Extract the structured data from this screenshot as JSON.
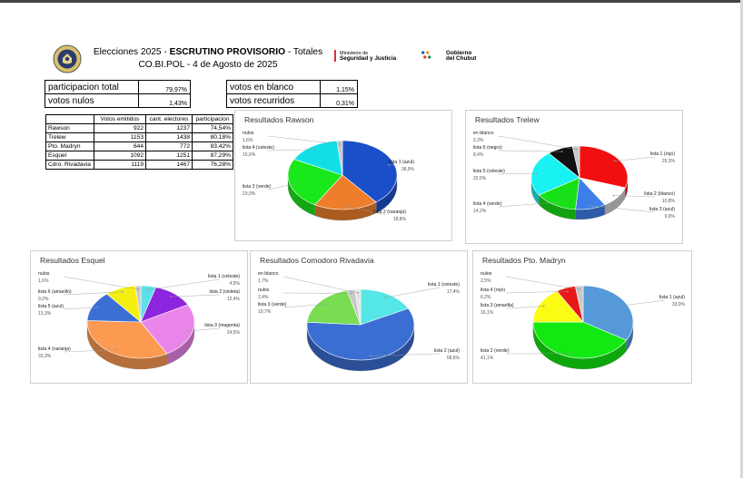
{
  "header": {
    "title_prefix": "Elecciones 2025 - ",
    "title_bold": "ESCRUTINO PROVISORIO",
    "title_suffix": " - Totales",
    "subtitle": "CO.BI.POL - 4 de Agosto de 2025"
  },
  "logos": {
    "ministry_line1": "Ministerio de",
    "ministry_line2": "Seguridad y Justicia",
    "gov_line1": "Gobierno",
    "gov_line2": "del Chubut"
  },
  "summary": {
    "participation_label": "participacion total",
    "participation_value": "79,97%",
    "null_label": "votos nulos",
    "null_value": "1,43%",
    "blank_label": "votos en blanco",
    "blank_value": "1,15%",
    "appealed_label": "votos recurridos",
    "appealed_value": "0,31%"
  },
  "table": {
    "headers": [
      "",
      "Votos emitidos",
      "cant. electores",
      "participacion"
    ],
    "rows": [
      [
        "Rawson",
        "922",
        "1237",
        "74,54%"
      ],
      [
        "Trelew",
        "1153",
        "1438",
        "80,18%"
      ],
      [
        "Pto. Madryn",
        "644",
        "772",
        "83,42%"
      ],
      [
        "Esquel",
        "1092",
        "1251",
        "87,29%"
      ],
      [
        "Cdro. Rivadavia",
        "1119",
        "1467",
        "76,28%"
      ]
    ]
  },
  "chart_data": [
    {
      "type": "pie",
      "title": "Resultados Rawson",
      "slices": [
        {
          "label": "lista 1 (azul)",
          "value": 38.9,
          "display": "38,9%",
          "color": "#1a4fc9"
        },
        {
          "label": "lista 2 (naranja)",
          "value": 18.8,
          "display": "18,8%",
          "color": "#ee7e2c"
        },
        {
          "label": "lista 3 (verde)",
          "value": 23.9,
          "display": "23,9%",
          "color": "#19e81b"
        },
        {
          "label": "lista 4 (celeste)",
          "value": 15.6,
          "display": "15,6%",
          "color": "#10dfe8"
        },
        {
          "label": "nulos",
          "value": 1.6,
          "display": "1,6%",
          "color": "#c8c8c8"
        }
      ]
    },
    {
      "type": "pie",
      "title": "Resultados Trelew",
      "slices": [
        {
          "label": "lista 1 (rojo)",
          "value": 29.3,
          "display": "29,3%",
          "color": "#f20f0f"
        },
        {
          "label": "lista 2 (blanco)",
          "value": 10.8,
          "display": "10,8%",
          "color": "#ffffff"
        },
        {
          "label": "lista 3 (azul)",
          "value": 9.9,
          "display": "9,9%",
          "color": "#3e7ee8"
        },
        {
          "label": "lista 4 (verde)",
          "value": 14.2,
          "display": "14,2%",
          "color": "#18e018"
        },
        {
          "label": "lista 5 (celeste)",
          "value": 22.5,
          "display": "22,5%",
          "color": "#18f2f2"
        },
        {
          "label": "lista 6 (negro)",
          "value": 8.4,
          "display": "8,4%",
          "color": "#111111"
        },
        {
          "label": "en blanco",
          "value": 2.3,
          "display": "2,3%",
          "color": "#c8c8c8"
        }
      ]
    },
    {
      "type": "pie",
      "title": "Resultados Esquel",
      "slices": [
        {
          "label": "lista 1 (celeste)",
          "value": 4.5,
          "display": "4,5%",
          "color": "#5ce0e8"
        },
        {
          "label": "lista 2 (violeta)",
          "value": 12.4,
          "display": "12,4%",
          "color": "#8c25de"
        },
        {
          "label": "lista 3 (magenta)",
          "value": 24.5,
          "display": "24,5%",
          "color": "#ea86ea"
        },
        {
          "label": "lista 4 (naranja)",
          "value": 33.3,
          "display": "33,3%",
          "color": "#fb9a50"
        },
        {
          "label": "lista 5 (azul)",
          "value": 13.3,
          "display": "13,3%",
          "color": "#3b6fd3"
        },
        {
          "label": "lista 6 (amarillo)",
          "value": 9.2,
          "display": "9,2%",
          "color": "#f4ef10"
        },
        {
          "label": "nulos",
          "value": 1.6,
          "display": "1,6%",
          "color": "#c8c8c8"
        }
      ]
    },
    {
      "type": "pie",
      "title": "Resultados Comodoro Rivadavia",
      "slices": [
        {
          "label": "lista 1 (celeste)",
          "value": 17.4,
          "display": "17,4%",
          "color": "#55e6e6"
        },
        {
          "label": "lista 2 (azul)",
          "value": 58.6,
          "display": "58,6%",
          "color": "#3a6ed2"
        },
        {
          "label": "lista 3 (verde)",
          "value": 19.7,
          "display": "19,7%",
          "color": "#79dc52"
        },
        {
          "label": "nulos",
          "value": 2.4,
          "display": "2,4%",
          "color": "#c8c8c8"
        },
        {
          "label": "en blanco",
          "value": 1.7,
          "display": "1,7%",
          "color": "#e4e4e4"
        }
      ]
    },
    {
      "type": "pie",
      "title": "Resultados Pto. Madryn",
      "slices": [
        {
          "label": "lista 1 (azul)",
          "value": 33.0,
          "display": "33,0%",
          "color": "#5599d8"
        },
        {
          "label": "lista 2 (verde)",
          "value": 41.1,
          "display": "41,1%",
          "color": "#12e812"
        },
        {
          "label": "lista 3 (amarilla)",
          "value": 16.1,
          "display": "16,1%",
          "color": "#fbfb14"
        },
        {
          "label": "lista 4 (rojo)",
          "value": 6.2,
          "display": "6,2%",
          "color": "#e81818"
        },
        {
          "label": "nulos",
          "value": 2.5,
          "display": "2,5%",
          "color": "#c8c8c8"
        }
      ]
    }
  ]
}
